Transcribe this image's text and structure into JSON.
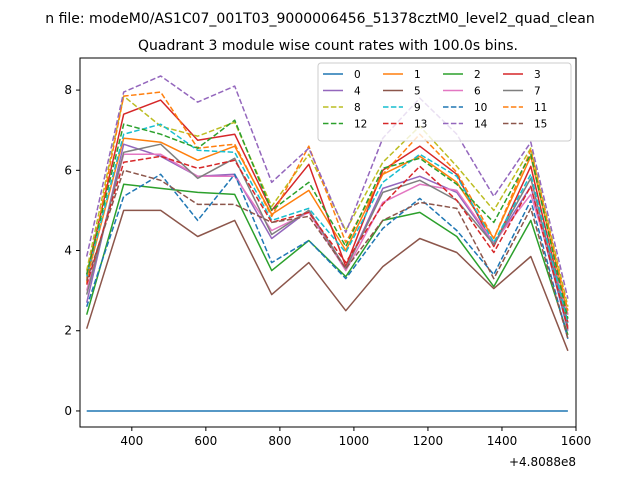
{
  "suptitle": "n file: modeM0/AS1C07_001T03_9000006456_51378cztM0_level2_quad_clean",
  "chart_data": {
    "type": "line",
    "title": "Quadrant 3 module wise count rates with 100.0s bins.",
    "xlabel": "",
    "ylabel": "",
    "x_offset_label": "+4.8088e8",
    "xlim": [
      260,
      1600
    ],
    "ylim": [
      -0.4,
      8.8
    ],
    "xticks": [
      400,
      600,
      800,
      1000,
      1200,
      1400,
      1600
    ],
    "yticks": [
      0,
      2,
      4,
      6,
      8
    ],
    "grid": false,
    "legend_position": "top-right",
    "legend_columns": 4,
    "x": [
      278,
      378,
      478,
      578,
      678,
      778,
      878,
      978,
      1078,
      1178,
      1278,
      1378,
      1478,
      1578
    ],
    "series": [
      {
        "name": "0",
        "color": "#1f77b4",
        "dashed": false,
        "values": [
          0,
          0,
          0,
          0,
          0,
          0,
          0,
          0,
          0,
          0,
          0,
          0,
          0,
          0
        ]
      },
      {
        "name": "1",
        "color": "#ff7f0e",
        "dashed": false,
        "values": [
          3.3,
          6.8,
          6.7,
          6.25,
          6.6,
          4.9,
          5.5,
          4.0,
          5.9,
          6.35,
          5.7,
          4.3,
          6.35,
          2.4
        ]
      },
      {
        "name": "2",
        "color": "#2ca02c",
        "dashed": false,
        "values": [
          2.4,
          5.65,
          5.55,
          5.45,
          5.4,
          3.5,
          4.25,
          3.35,
          4.75,
          4.95,
          4.35,
          3.1,
          4.75,
          1.9
        ]
      },
      {
        "name": "3",
        "color": "#d62728",
        "dashed": false,
        "values": [
          3.4,
          7.4,
          7.75,
          6.75,
          6.9,
          5.0,
          6.15,
          3.6,
          6.0,
          6.6,
          5.9,
          4.1,
          6.1,
          2.2
        ]
      },
      {
        "name": "4",
        "color": "#9467bd",
        "dashed": false,
        "values": [
          2.7,
          6.65,
          6.35,
          5.85,
          5.9,
          4.3,
          5.0,
          3.55,
          5.55,
          5.85,
          5.45,
          4.15,
          5.6,
          2.0
        ]
      },
      {
        "name": "5",
        "color": "#8c564b",
        "dashed": false,
        "values": [
          2.05,
          5.0,
          5.0,
          4.35,
          4.75,
          2.9,
          3.7,
          2.5,
          3.6,
          4.3,
          3.95,
          3.05,
          3.85,
          1.5
        ]
      },
      {
        "name": "6",
        "color": "#e377c2",
        "dashed": false,
        "values": [
          3.0,
          6.4,
          6.4,
          5.85,
          5.85,
          4.5,
          4.95,
          3.5,
          5.2,
          5.65,
          5.5,
          4.2,
          5.4,
          2.4
        ]
      },
      {
        "name": "7",
        "color": "#7f7f7f",
        "dashed": false,
        "values": [
          2.9,
          6.45,
          6.65,
          5.8,
          6.3,
          4.4,
          5.0,
          3.55,
          5.45,
          5.75,
          5.25,
          4.15,
          5.8,
          2.1
        ]
      },
      {
        "name": "8",
        "color": "#bcbd22",
        "dashed": true,
        "values": [
          3.5,
          7.85,
          7.1,
          6.85,
          7.2,
          5.1,
          6.4,
          4.5,
          6.2,
          7.1,
          6.1,
          5.0,
          6.55,
          2.6
        ]
      },
      {
        "name": "9",
        "color": "#17becf",
        "dashed": true,
        "values": [
          3.35,
          6.9,
          7.15,
          6.5,
          6.45,
          4.75,
          5.05,
          3.95,
          5.7,
          6.4,
          5.85,
          4.2,
          5.9,
          2.2
        ]
      },
      {
        "name": "10",
        "color": "#1f77b4",
        "dashed": true,
        "values": [
          2.6,
          5.35,
          5.9,
          4.75,
          5.9,
          3.7,
          4.25,
          3.3,
          4.55,
          5.3,
          4.5,
          3.4,
          5.25,
          1.8
        ]
      },
      {
        "name": "11",
        "color": "#ff7f0e",
        "dashed": true,
        "values": [
          3.2,
          7.85,
          7.95,
          6.55,
          6.65,
          4.85,
          6.6,
          4.2,
          5.9,
          6.9,
          5.95,
          4.3,
          6.5,
          2.5
        ]
      },
      {
        "name": "12",
        "color": "#2ca02c",
        "dashed": true,
        "values": [
          3.4,
          7.15,
          6.9,
          6.55,
          7.25,
          5.0,
          5.7,
          4.1,
          6.05,
          6.3,
          5.65,
          4.7,
          6.4,
          2.3
        ]
      },
      {
        "name": "13",
        "color": "#d62728",
        "dashed": true,
        "values": [
          3.15,
          6.2,
          6.35,
          6.05,
          6.25,
          4.7,
          4.95,
          3.7,
          5.15,
          6.1,
          5.25,
          3.95,
          5.6,
          2.05
        ]
      },
      {
        "name": "14",
        "color": "#9467bd",
        "dashed": true,
        "values": [
          3.85,
          7.95,
          8.35,
          7.7,
          8.1,
          5.7,
          6.55,
          4.45,
          6.8,
          7.8,
          6.9,
          5.35,
          6.7,
          2.8
        ]
      },
      {
        "name": "15",
        "color": "#8c564b",
        "dashed": true,
        "values": [
          3.25,
          6.0,
          5.75,
          5.15,
          5.15,
          4.7,
          4.85,
          3.55,
          4.75,
          5.2,
          5.05,
          3.3,
          5.05,
          1.8
        ]
      }
    ]
  }
}
